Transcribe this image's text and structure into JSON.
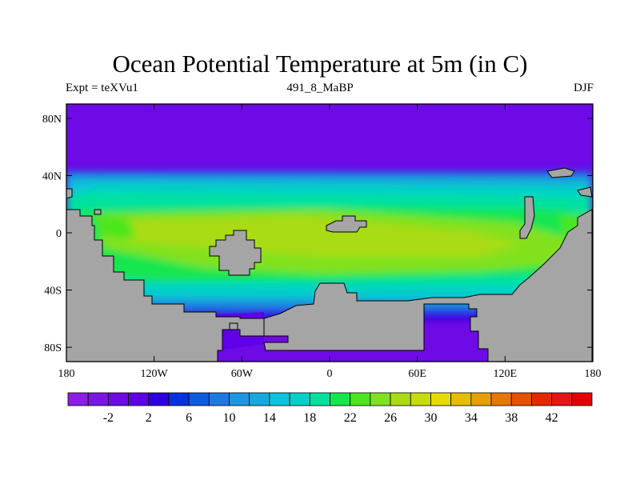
{
  "title": "Ocean Potential Temperature at 5m (in C)",
  "left_label": "Expt = teXVu1",
  "center_label": "491_8_MaBP",
  "right_label": "DJF",
  "colors": {
    "land": "#a5a5a5",
    "frame": "#000000",
    "ramp": [
      "#8c1ee6",
      "#7d14e6",
      "#6e0ae6",
      "#5f00e6",
      "#2d00e1",
      "#0032e1",
      "#0f5ae1",
      "#1e78e1",
      "#1e96e1",
      "#14aadc",
      "#0ac3dc",
      "#00d2c8",
      "#00e1a0",
      "#14e650",
      "#4be61e",
      "#82e11e",
      "#aadc14",
      "#c8dc0a",
      "#e6dc00",
      "#e6be00",
      "#e6a000",
      "#e67800",
      "#e65000",
      "#e62800",
      "#e61414",
      "#e60000"
    ]
  },
  "chart_data": {
    "type": "heatmap",
    "title": "Ocean Potential Temperature at 5m (in C)",
    "variable": "Ocean potential temperature at 5m",
    "units": "C",
    "xaxis": {
      "range": [
        -180,
        180
      ],
      "ticks": [
        "180",
        "120W",
        "60W",
        "0",
        "60E",
        "120E",
        "180"
      ]
    },
    "yaxis": {
      "range": [
        -90,
        90
      ],
      "ticks": [
        "80N",
        "40N",
        "0",
        "40S",
        "80S"
      ]
    },
    "colorbar": {
      "levels": [
        -4,
        -2,
        0,
        2,
        4,
        6,
        8,
        10,
        12,
        14,
        16,
        18,
        20,
        22,
        24,
        26,
        28,
        30,
        32,
        34,
        36,
        38,
        40,
        42,
        44
      ],
      "labels": [
        "-2",
        "2",
        "6",
        "10",
        "14",
        "18",
        "22",
        "26",
        "30",
        "34",
        "38",
        "42"
      ]
    }
  }
}
